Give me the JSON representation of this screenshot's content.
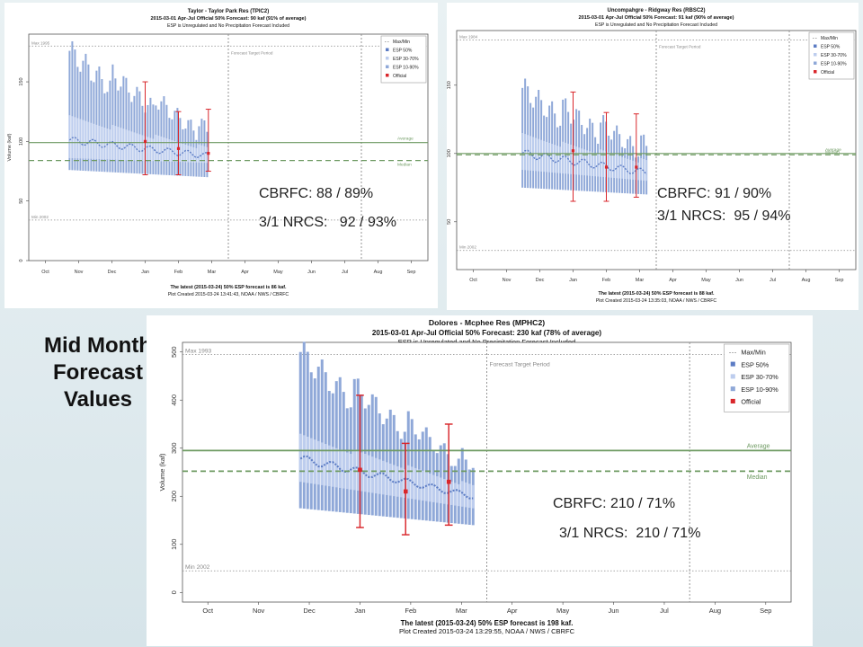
{
  "slide": {
    "side_title": [
      "Mid Month",
      "Forecast",
      "Values"
    ]
  },
  "chart_data": [
    {
      "id": "taylor",
      "type": "line",
      "title": "Taylor - Taylor Park Res (TPIC2)",
      "subtitle": "2015-03-01 Apr-Jul Official 50% Forecast: 90 kaf (91% of average)",
      "subtitle2": "ESP is Unregulated and No Precipitation Forecast Included",
      "ylabel": "Volume (kaf)",
      "x_ticks": [
        "Oct",
        "Nov",
        "Dec",
        "Jan",
        "Feb",
        "Mar",
        "Apr",
        "May",
        "Jun",
        "Jul",
        "Aug",
        "Sep"
      ],
      "y_ticks": [
        0,
        50,
        100,
        150
      ],
      "ylim": [
        0,
        190
      ],
      "max_label": "Max 1995",
      "max_value": 180,
      "min_label": "Min 2002",
      "min_value": 34,
      "average_label": "Average",
      "average_value": 99,
      "median_label": "Median",
      "median_value": 84,
      "target_label": "Forecast Target Period",
      "target_start_month": 6,
      "target_end_month": 10,
      "legend": [
        "Max/Min",
        "ESP 50%",
        "ESP 30-70%",
        "ESP 10-90%",
        "Official"
      ],
      "esp_start_month": 1.2,
      "esp_end_month": 5.4,
      "esp": {
        "p10_start": 76,
        "p10_end": 70,
        "p90_start": 176,
        "p90_end": 112,
        "p30_start": 86,
        "p30_end": 82,
        "p70_start": 122,
        "p70_end": 96,
        "p50_start": 101,
        "p50_end": 88
      },
      "official": [
        {
          "month": 3.0,
          "value": 100,
          "low": 72,
          "high": 150
        },
        {
          "month": 4.0,
          "value": 94,
          "low": 72,
          "high": 125
        },
        {
          "month": 4.9,
          "value": 90,
          "low": 75,
          "high": 127
        }
      ],
      "footer": "The latest (2015-03-24) 50% ESP forecast is 86 kaf.",
      "footer2": "Plot Created 2015-03-24 13:41:43, NOAA / NWS / CBRFC",
      "note1": "CBRFC: 88 / 89%",
      "note2": "3/1 NRCS:   92 / 93%"
    },
    {
      "id": "ridgway",
      "type": "line",
      "title": "Uncompahgre - Ridgway Res (RBSC2)",
      "subtitle": "2015-03-01 Apr-Jul Official 50% Forecast: 91 kaf (90% of average)",
      "subtitle2": "ESP is Unregulated and No Precipitation Forecast Included",
      "ylabel": "Volume (kaf)",
      "x_ticks": [
        "Oct",
        "Nov",
        "Dec",
        "Jan",
        "Feb",
        "Mar",
        "Apr",
        "May",
        "Jun",
        "Jul",
        "Aug",
        "Sep"
      ],
      "y_ticks": [
        50,
        100,
        150
      ],
      "ylim": [
        15,
        190
      ],
      "max_label": "Max 1984",
      "max_value": 183,
      "min_label": "Min 2002",
      "min_value": 29,
      "average_label": "Average",
      "average_value": 100,
      "median_label": "Median",
      "median_value": 99,
      "target_label": "Forecast Target Period",
      "target_start_month": 6,
      "target_end_month": 10,
      "legend": [
        "Max/Min",
        "ESP 50%",
        "ESP 30-70%",
        "ESP 10-90%",
        "Official"
      ],
      "esp_start_month": 1.95,
      "esp_end_month": 5.7,
      "esp": {
        "p10_start": 75,
        "p10_end": 70,
        "p90_start": 148,
        "p90_end": 108,
        "p30_start": 88,
        "p30_end": 80,
        "p70_start": 115,
        "p70_end": 96,
        "p50_start": 100,
        "p50_end": 86
      },
      "official": [
        {
          "month": 3.0,
          "value": 102,
          "low": 65,
          "high": 145
        },
        {
          "month": 4.0,
          "value": 90,
          "low": 65,
          "high": 130
        },
        {
          "month": 4.9,
          "value": 90,
          "low": 68,
          "high": 129
        }
      ],
      "footer": "The latest (2015-03-24) 50% ESP forecast is 88 kaf.",
      "footer2": "Plot Created 2015-03-24 13:35:03, NOAA / NWS / CBRFC",
      "note1": "CBRFC: 91 / 90%",
      "note2": "3/1 NRCS:  95 / 94%"
    },
    {
      "id": "dolores",
      "type": "line",
      "title": "Dolores - Mcphee Res (MPHC2)",
      "subtitle": "2015-03-01 Apr-Jul Official 50% Forecast: 230 kaf (78% of average)",
      "subtitle2": "ESP is Unregulated and No Precipitation Forecast Included",
      "ylabel": "Volume (kaf)",
      "x_ticks": [
        "Oct",
        "Nov",
        "Dec",
        "Jan",
        "Feb",
        "Mar",
        "Apr",
        "May",
        "Jun",
        "Jul",
        "Aug",
        "Sep"
      ],
      "y_ticks": [
        0,
        100,
        200,
        300,
        400,
        500
      ],
      "ylim": [
        -20,
        520
      ],
      "max_label": "Max 1993",
      "max_value": 495,
      "min_label": "Min 2002",
      "min_value": 45,
      "average_label": "Average",
      "average_value": 295,
      "median_label": "Median",
      "median_value": 252,
      "target_label": "Forecast Target Period",
      "target_start_month": 6,
      "target_end_month": 10,
      "legend": [
        "Max/Min",
        "ESP 50%",
        "ESP 30-70%",
        "ESP 10-90%",
        "Official"
      ],
      "esp_start_month": 2.3,
      "esp_end_month": 5.75,
      "esp": {
        "p10_start": 175,
        "p10_end": 140,
        "p90_start": 500,
        "p90_end": 270,
        "p30_start": 230,
        "p30_end": 175,
        "p70_start": 330,
        "p70_end": 225,
        "p50_start": 278,
        "p50_end": 200
      },
      "official": [
        {
          "month": 3.0,
          "value": 255,
          "low": 135,
          "high": 410
        },
        {
          "month": 3.9,
          "value": 210,
          "low": 120,
          "high": 310
        },
        {
          "month": 4.75,
          "value": 230,
          "low": 140,
          "high": 350
        }
      ],
      "footer": "The latest (2015-03-24) 50% ESP forecast is 198 kaf.",
      "footer2": "Plot Created 2015-03-24 13:29:55, NOAA / NWS / CBRFC",
      "note1": "CBRFC: 210 / 71%",
      "note2": "3/1 NRCS:  210 / 71%"
    }
  ],
  "colors": {
    "esp_outer": "#8fa8d8",
    "esp_mid": "#a9bde6",
    "esp_inner": "#bdcdee",
    "esp_line": "#5c7cc4",
    "official": "#d9262b",
    "average": "#6e9a62",
    "gray": "#8a8a8a",
    "green_text": "#6e9a62"
  }
}
